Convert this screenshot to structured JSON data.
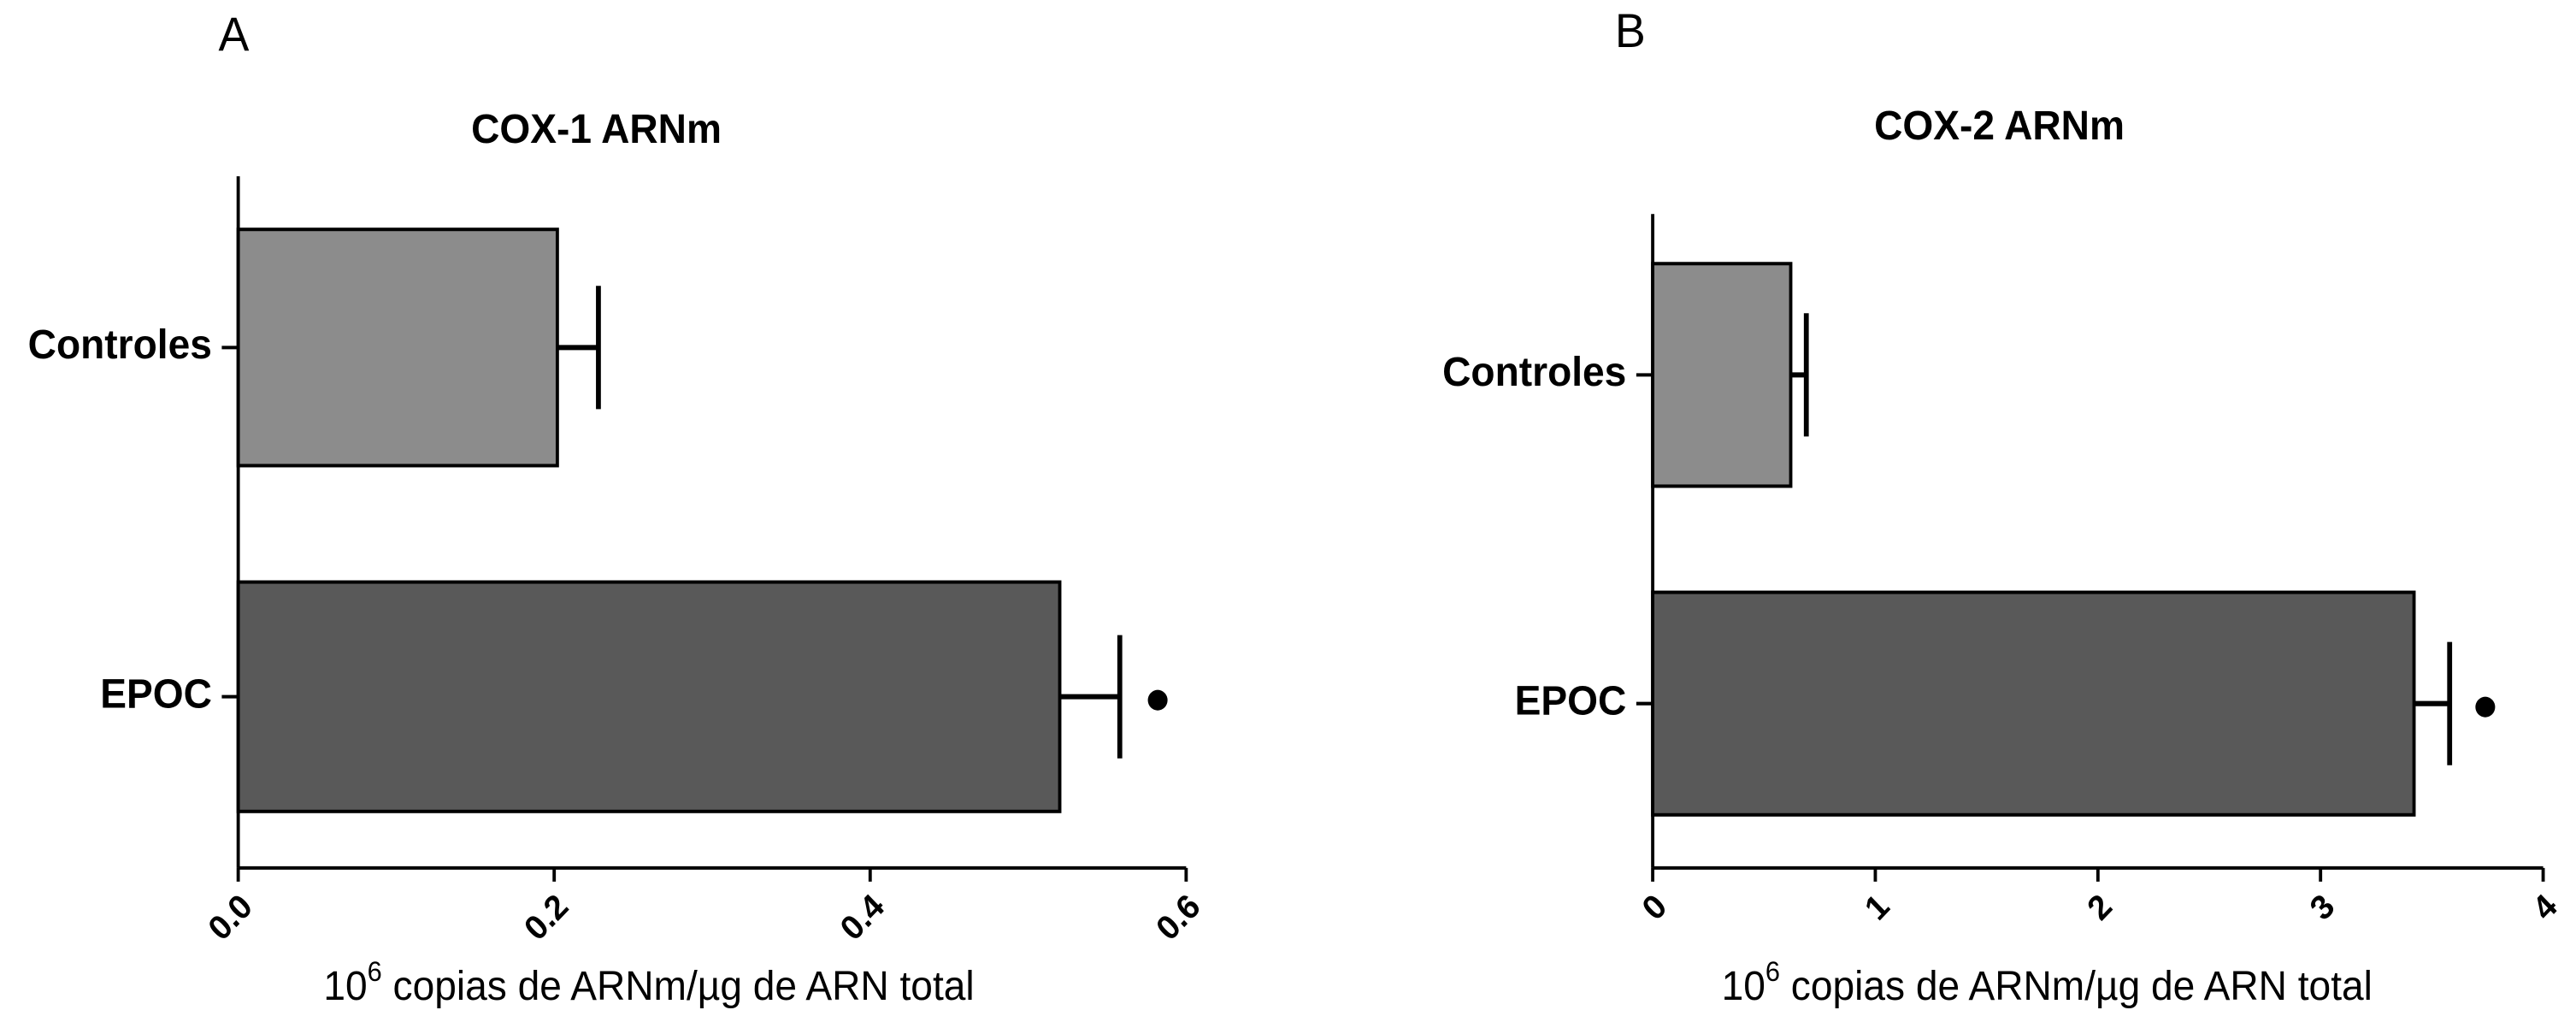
{
  "chart_data": [
    {
      "type": "hbar",
      "panel": "A",
      "title": "COX-1 ARNm",
      "categories": [
        "Controles",
        "EPOC"
      ],
      "values": [
        0.202,
        0.52
      ],
      "errors": [
        0.026,
        0.038
      ],
      "colors": [
        "#8c8c8c",
        "#595959"
      ],
      "significant": [
        false,
        true
      ],
      "xlim": [
        0,
        0.6
      ],
      "xticks": [
        {
          "value": 0,
          "label": "0.0"
        },
        0.2,
        0.4,
        0.6
      ],
      "x_label_parts": [
        "10",
        "6",
        " copias de ARNm/µg de ARN total"
      ]
    },
    {
      "type": "hbar",
      "panel": "B",
      "title": "COX-2 ARNm",
      "categories": [
        "Controles",
        "EPOC"
      ],
      "values": [
        0.62,
        3.42
      ],
      "errors": [
        0.07,
        0.16
      ],
      "colors": [
        "#8c8c8c",
        "#595959"
      ],
      "significant": [
        false,
        true
      ],
      "xlim": [
        0,
        4
      ],
      "xticks": [
        0,
        1,
        2,
        3,
        4
      ],
      "x_label_parts": [
        "10",
        "6",
        " copias de ARNm/µg de ARN total"
      ]
    }
  ]
}
